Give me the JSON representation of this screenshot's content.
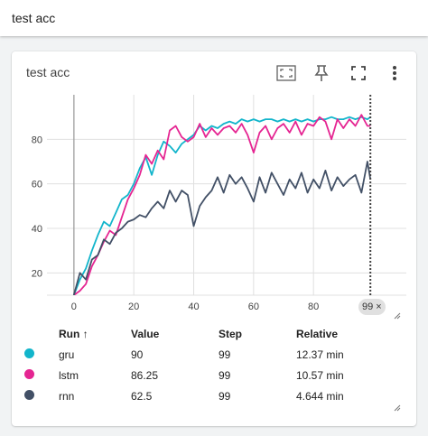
{
  "page": {
    "title": "test acc"
  },
  "card": {
    "title": "test acc"
  },
  "toolbar": {
    "icons": [
      "fit-domain-icon",
      "pin-icon",
      "fullscreen-icon",
      "more-vert-icon"
    ]
  },
  "step_badge": {
    "label": "99",
    "close_glyph": "×"
  },
  "legend": {
    "headers": {
      "run": "Run",
      "sort_glyph": "↑",
      "value": "Value",
      "step": "Step",
      "relative": "Relative"
    },
    "rows": [
      {
        "run": "gru",
        "value": "90",
        "step": "99",
        "relative": "12.37 min",
        "color": "#12b5cb"
      },
      {
        "run": "lstm",
        "value": "86.25",
        "step": "99",
        "relative": "10.57 min",
        "color": "#e52592"
      },
      {
        "run": "rnn",
        "value": "62.5",
        "step": "99",
        "relative": "4.644 min",
        "color": "#425066"
      }
    ]
  },
  "chart_data": {
    "type": "line",
    "title": "test acc",
    "xlim": [
      -9,
      111
    ],
    "ylim": [
      10,
      100
    ],
    "x_ticks": [
      0,
      20,
      40,
      60,
      80
    ],
    "y_ticks": [
      20,
      40,
      60,
      80
    ],
    "grid": true,
    "hover_step": 99,
    "series": [
      {
        "name": "gru",
        "color": "#12b5cb",
        "points": [
          [
            0,
            10
          ],
          [
            2,
            17
          ],
          [
            4,
            22
          ],
          [
            6,
            30
          ],
          [
            8,
            37
          ],
          [
            10,
            43
          ],
          [
            12,
            41
          ],
          [
            14,
            47
          ],
          [
            16,
            53
          ],
          [
            18,
            55
          ],
          [
            20,
            60
          ],
          [
            22,
            67
          ],
          [
            24,
            72
          ],
          [
            26,
            64
          ],
          [
            28,
            73
          ],
          [
            30,
            79
          ],
          [
            32,
            77
          ],
          [
            34,
            74
          ],
          [
            36,
            78
          ],
          [
            38,
            80
          ],
          [
            40,
            82
          ],
          [
            42,
            86
          ],
          [
            44,
            84
          ],
          [
            46,
            86
          ],
          [
            48,
            85
          ],
          [
            50,
            87
          ],
          [
            52,
            88
          ],
          [
            54,
            87
          ],
          [
            56,
            89
          ],
          [
            58,
            88
          ],
          [
            60,
            89
          ],
          [
            62,
            88
          ],
          [
            64,
            89
          ],
          [
            66,
            89
          ],
          [
            68,
            88
          ],
          [
            70,
            89
          ],
          [
            72,
            88
          ],
          [
            74,
            89
          ],
          [
            76,
            88
          ],
          [
            78,
            89
          ],
          [
            80,
            88
          ],
          [
            82,
            89
          ],
          [
            84,
            89
          ],
          [
            86,
            90
          ],
          [
            88,
            89
          ],
          [
            90,
            89
          ],
          [
            92,
            90
          ],
          [
            94,
            89
          ],
          [
            96,
            90
          ],
          [
            98,
            89
          ],
          [
            99,
            90
          ]
        ]
      },
      {
        "name": "lstm",
        "color": "#e52592",
        "points": [
          [
            0,
            10
          ],
          [
            2,
            12
          ],
          [
            4,
            15
          ],
          [
            6,
            23
          ],
          [
            8,
            28
          ],
          [
            10,
            34
          ],
          [
            12,
            39
          ],
          [
            14,
            37
          ],
          [
            16,
            45
          ],
          [
            18,
            53
          ],
          [
            20,
            58
          ],
          [
            22,
            64
          ],
          [
            24,
            73
          ],
          [
            26,
            69
          ],
          [
            28,
            75
          ],
          [
            30,
            71
          ],
          [
            32,
            84
          ],
          [
            34,
            86
          ],
          [
            36,
            81
          ],
          [
            38,
            79
          ],
          [
            40,
            81
          ],
          [
            42,
            87
          ],
          [
            44,
            81
          ],
          [
            46,
            85
          ],
          [
            48,
            82
          ],
          [
            50,
            85
          ],
          [
            52,
            86
          ],
          [
            54,
            83
          ],
          [
            56,
            87
          ],
          [
            58,
            82
          ],
          [
            60,
            74
          ],
          [
            62,
            83
          ],
          [
            64,
            86
          ],
          [
            66,
            80
          ],
          [
            68,
            85
          ],
          [
            70,
            87
          ],
          [
            72,
            83
          ],
          [
            74,
            88
          ],
          [
            76,
            82
          ],
          [
            78,
            87
          ],
          [
            80,
            86
          ],
          [
            82,
            90
          ],
          [
            84,
            88
          ],
          [
            86,
            80
          ],
          [
            88,
            89
          ],
          [
            90,
            85
          ],
          [
            92,
            89
          ],
          [
            94,
            86
          ],
          [
            96,
            91
          ],
          [
            98,
            86
          ],
          [
            99,
            86
          ]
        ]
      },
      {
        "name": "rnn",
        "color": "#425066",
        "points": [
          [
            0,
            10
          ],
          [
            2,
            20
          ],
          [
            4,
            17
          ],
          [
            6,
            26
          ],
          [
            8,
            28
          ],
          [
            10,
            35
          ],
          [
            12,
            33
          ],
          [
            14,
            38
          ],
          [
            16,
            40
          ],
          [
            18,
            43
          ],
          [
            20,
            44
          ],
          [
            22,
            46
          ],
          [
            24,
            45
          ],
          [
            26,
            49
          ],
          [
            28,
            52
          ],
          [
            30,
            49
          ],
          [
            32,
            57
          ],
          [
            34,
            52
          ],
          [
            36,
            57
          ],
          [
            38,
            55
          ],
          [
            40,
            41
          ],
          [
            42,
            50
          ],
          [
            44,
            54
          ],
          [
            46,
            57
          ],
          [
            48,
            63
          ],
          [
            50,
            56
          ],
          [
            52,
            64
          ],
          [
            54,
            60
          ],
          [
            56,
            63
          ],
          [
            58,
            58
          ],
          [
            60,
            52
          ],
          [
            62,
            63
          ],
          [
            64,
            56
          ],
          [
            66,
            65
          ],
          [
            68,
            60
          ],
          [
            70,
            55
          ],
          [
            72,
            62
          ],
          [
            74,
            58
          ],
          [
            76,
            65
          ],
          [
            78,
            56
          ],
          [
            80,
            62
          ],
          [
            82,
            58
          ],
          [
            84,
            66
          ],
          [
            86,
            57
          ],
          [
            88,
            63
          ],
          [
            90,
            59
          ],
          [
            92,
            62
          ],
          [
            94,
            64
          ],
          [
            96,
            56
          ],
          [
            98,
            70
          ],
          [
            99,
            62
          ]
        ]
      }
    ]
  }
}
